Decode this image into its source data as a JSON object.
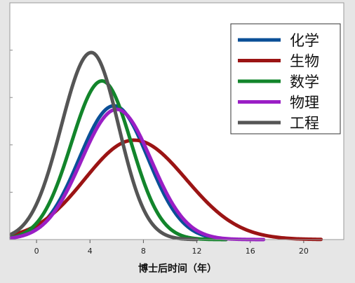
{
  "chart_data": {
    "type": "line",
    "xlabel": "博士后时间（年）",
    "ylabel": "",
    "title": "",
    "xlim": [
      -2,
      23
    ],
    "ylim": [
      0,
      1
    ],
    "x_ticks": [
      0,
      4,
      8,
      12,
      16,
      20
    ],
    "x_tick_labels": [
      "0",
      "4",
      "8",
      "12",
      "16",
      "20"
    ],
    "y_ticks": [
      0.2,
      0.4,
      0.6,
      0.8
    ],
    "grid": false,
    "legend_position": "top-right",
    "series": [
      {
        "name": "化学",
        "color": "#0a4f97",
        "peak_x": 5.8,
        "peak_y": 0.565,
        "sd_left": 2.6,
        "sd_right": 2.55,
        "x_start": -1.9,
        "x_end": 14.2
      },
      {
        "name": "生物",
        "color": "#9b1414",
        "peak_x": 7.3,
        "peak_y": 0.42,
        "sd_left": 3.7,
        "sd_right": 3.9,
        "x_start": -1.9,
        "x_end": 21.3
      },
      {
        "name": "数学",
        "color": "#12852b",
        "peak_x": 4.9,
        "peak_y": 0.67,
        "sd_left": 2.3,
        "sd_right": 2.2,
        "x_start": -1.9,
        "x_end": 14.2
      },
      {
        "name": "物理",
        "color": "#9a1ec5",
        "peak_x": 6.0,
        "peak_y": 0.55,
        "sd_left": 2.65,
        "sd_right": 2.6,
        "x_start": -1.9,
        "x_end": 17.0
      },
      {
        "name": "工程",
        "color": "#555555",
        "peak_x": 4.1,
        "peak_y": 0.79,
        "sd_left": 2.25,
        "sd_right": 2.05,
        "x_start": -1.9,
        "x_end": 12.0
      }
    ]
  }
}
